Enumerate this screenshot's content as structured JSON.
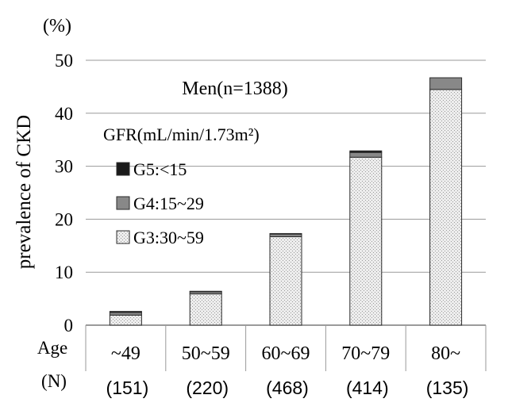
{
  "chart_data": {
    "type": "bar",
    "stacked": true,
    "title": "Men(n=1388)",
    "ylabel": "prevalence of CKD",
    "yunit": "(%)",
    "ylim": [
      0,
      50
    ],
    "yticks": [
      0,
      10,
      20,
      30,
      40,
      50
    ],
    "grid": true,
    "legend_title": "GFR(mL/min/1.73m²)",
    "legend_placement": "top-left",
    "x_row_label": "Age",
    "n_row_label": "(N)",
    "categories": [
      "~49",
      "50~59",
      "60~69",
      "70~79",
      "80~"
    ],
    "n_labels": [
      "(151)",
      "(220)",
      "(468)",
      "(414)",
      "(135)"
    ],
    "series": [
      {
        "name": "G3:30~59",
        "values": [
          1.9,
          5.9,
          16.7,
          31.7,
          44.5
        ],
        "color": "#d9d9d9",
        "pattern": "dotted"
      },
      {
        "name": "G4:15~29",
        "values": [
          0.5,
          0.4,
          0.5,
          0.9,
          2.2
        ],
        "color": "#888888"
      },
      {
        "name": "G5:<15",
        "values": [
          0.2,
          0.1,
          0.1,
          0.3,
          0.0
        ],
        "color": "#1a1a1a"
      }
    ]
  }
}
